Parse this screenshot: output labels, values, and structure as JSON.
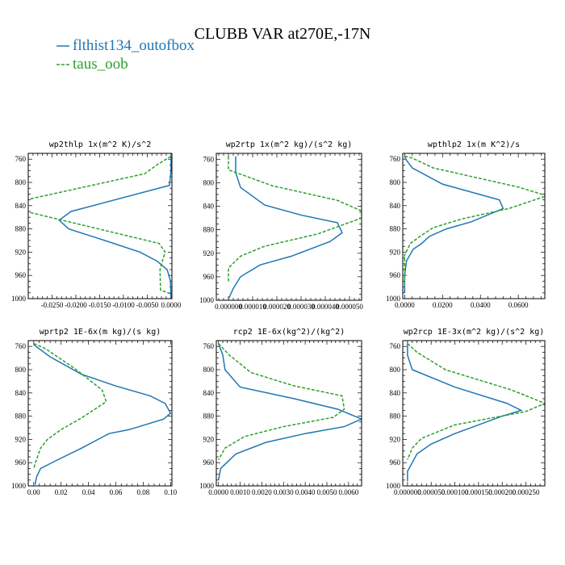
{
  "figure": {
    "title": "CLUBB VAR at270E,-17N",
    "legend": [
      {
        "label": "flthist134_outofbox",
        "color": "#1f77b4",
        "dash": "solid"
      },
      {
        "label": "taus_oob",
        "color": "#2ca02c",
        "dash": "dashed"
      }
    ]
  },
  "chart_data": [
    {
      "type": "line",
      "title": "wp2thlp  1x(m^2 K)/s^2",
      "xlim": [
        -0.03,
        0.0002
      ],
      "ylim": [
        1000,
        750
      ],
      "y_ticks": [
        760,
        800,
        840,
        880,
        920,
        960,
        1000
      ],
      "x_ticks": [
        -0.025,
        -0.02,
        -0.015,
        -0.01,
        -0.005,
        0.0
      ],
      "x_tick_labels": [
        "-0.0250",
        "-0.0200",
        "-0.0150",
        "-0.0100",
        "-0.0050",
        "0.0000"
      ],
      "series": [
        {
          "name": "flthist134_outofbox",
          "points": [
            [
              0.0,
              755
            ],
            [
              0.0,
              780
            ],
            [
              -0.0003,
              805
            ],
            [
              -0.021,
              850
            ],
            [
              -0.0235,
              865
            ],
            [
              -0.0215,
              880
            ],
            [
              -0.012,
              905
            ],
            [
              -0.0065,
              920
            ],
            [
              -0.003,
              935
            ],
            [
              -0.0008,
              950
            ],
            [
              -0.0001,
              970
            ],
            [
              0.0,
              1000
            ]
          ]
        },
        {
          "name": "taus_oob",
          "points": [
            [
              0.0,
              755
            ],
            [
              -0.003,
              770
            ],
            [
              -0.0055,
              785
            ],
            [
              -0.0305,
              830
            ],
            [
              -0.0305,
              850
            ],
            [
              -0.0025,
              905
            ],
            [
              -0.0012,
              920
            ],
            [
              -0.0018,
              935
            ],
            [
              -0.0023,
              950
            ],
            [
              -0.0022,
              985
            ],
            [
              0.0,
              992
            ]
          ]
        }
      ]
    },
    {
      "type": "line",
      "title": "wp2rtp  1x(m^2 kg)/(s^2 kg)",
      "xlim": [
        -5e-06,
        5.5e-05
      ],
      "ylim": [
        1000,
        750
      ],
      "y_ticks": [
        760,
        800,
        840,
        880,
        920,
        960,
        1000
      ],
      "x_ticks": [
        0.0,
        1e-05,
        2e-05,
        3e-05,
        4e-05,
        5e-05
      ],
      "x_tick_labels": [
        "0.000000",
        "0.000010",
        "0.000020",
        "0.000030",
        "0.000040",
        "0.000050"
      ],
      "series": [
        {
          "name": "flthist134_outofbox",
          "points": [
            [
              3e-06,
              755
            ],
            [
              3e-06,
              783
            ],
            [
              5e-06,
              808
            ],
            [
              1.5e-05,
              838
            ],
            [
              3e-05,
              855
            ],
            [
              4.5e-05,
              868
            ],
            [
              4.7e-05,
              885
            ],
            [
              4.2e-05,
              900
            ],
            [
              2.6e-05,
              925
            ],
            [
              1.3e-05,
              940
            ],
            [
              5e-06,
              960
            ],
            [
              2e-06,
              980
            ],
            [
              0.0,
              998
            ]
          ]
        },
        {
          "name": "taus_oob",
          "points": [
            [
              0.0,
              755
            ],
            [
              0.0,
              765
            ],
            [
              0.0,
              778
            ],
            [
              1.8e-05,
              805
            ],
            [
              4.5e-05,
              830
            ],
            [
              5.5e-05,
              848
            ],
            [
              5.5e-05,
              860
            ],
            [
              3.7e-05,
              887
            ],
            [
              1.5e-05,
              908
            ],
            [
              5e-06,
              925
            ],
            [
              0.0,
              945
            ],
            [
              0.0,
              960
            ],
            [
              0.0,
              970
            ]
          ]
        }
      ]
    },
    {
      "type": "line",
      "title": "wpthlp2  1x(m K^2)/s",
      "xlim": [
        -0.001,
        0.074
      ],
      "ylim": [
        1000,
        750
      ],
      "y_ticks": [
        760,
        800,
        840,
        880,
        920,
        960,
        1000
      ],
      "x_ticks": [
        0.0,
        0.02,
        0.04,
        0.06
      ],
      "x_tick_labels": [
        "0.0000",
        "0.0200",
        "0.0400",
        "0.0600"
      ],
      "series": [
        {
          "name": "flthist134_outofbox",
          "points": [
            [
              0.0,
              755
            ],
            [
              0.0005,
              760
            ],
            [
              0.004,
              775
            ],
            [
              0.02,
              803
            ],
            [
              0.05,
              830
            ],
            [
              0.052,
              845
            ],
            [
              0.035,
              868
            ],
            [
              0.022,
              880
            ],
            [
              0.013,
              893
            ],
            [
              0.009,
              905
            ],
            [
              0.0045,
              915
            ],
            [
              0.001,
              935
            ],
            [
              0.0,
              960
            ],
            [
              0.0,
              990
            ]
          ]
        },
        {
          "name": "taus_oob",
          "points": [
            [
              0.0,
              755
            ],
            [
              0.004,
              758
            ],
            [
              0.015,
              775
            ],
            [
              0.06,
              808
            ],
            [
              0.075,
              823
            ],
            [
              0.055,
              845
            ],
            [
              0.03,
              863
            ],
            [
              0.015,
              878
            ],
            [
              0.008,
              893
            ],
            [
              0.003,
              905
            ],
            [
              0.0,
              925
            ],
            [
              0.0,
              975
            ]
          ]
        }
      ]
    },
    {
      "type": "line",
      "title": "wprtp2  1E-6x(m kg)/(s kg)",
      "xlim": [
        -0.004,
        0.101
      ],
      "ylim": [
        1000,
        750
      ],
      "y_ticks": [
        760,
        800,
        840,
        880,
        920,
        960,
        1000
      ],
      "x_ticks": [
        0.0,
        0.02,
        0.04,
        0.06,
        0.08,
        0.1
      ],
      "x_tick_labels": [
        "0.00",
        "0.02",
        "0.04",
        "0.06",
        "0.08",
        "0.10"
      ],
      "series": [
        {
          "name": "flthist134_outofbox",
          "points": [
            [
              0.0,
              757
            ],
            [
              0.012,
              778
            ],
            [
              0.035,
              808
            ],
            [
              0.06,
              828
            ],
            [
              0.085,
              845
            ],
            [
              0.096,
              858
            ],
            [
              0.1,
              875
            ],
            [
              0.095,
              885
            ],
            [
              0.07,
              903
            ],
            [
              0.055,
              910
            ],
            [
              0.035,
              935
            ],
            [
              0.015,
              958
            ],
            [
              0.005,
              970
            ],
            [
              0.002,
              985
            ],
            [
              0.001,
              998
            ]
          ]
        },
        {
          "name": "taus_oob",
          "points": [
            [
              0.0,
              755
            ],
            [
              0.008,
              763
            ],
            [
              0.03,
              798
            ],
            [
              0.05,
              835
            ],
            [
              0.053,
              855
            ],
            [
              0.035,
              883
            ],
            [
              0.02,
              903
            ],
            [
              0.01,
              920
            ],
            [
              0.005,
              935
            ],
            [
              0.002,
              955
            ],
            [
              0.0,
              970
            ]
          ]
        }
      ]
    },
    {
      "type": "line",
      "title": "rcp2  1E-6x(kg^2)/(kg^2)",
      "xlim": [
        -0.0001,
        0.0066
      ],
      "ylim": [
        1000,
        750
      ],
      "y_ticks": [
        760,
        800,
        840,
        880,
        920,
        960,
        1000
      ],
      "x_ticks": [
        0.0,
        0.001,
        0.002,
        0.003,
        0.004,
        0.005,
        0.006
      ],
      "x_tick_labels": [
        "0.0000",
        "0.0010",
        "0.0020",
        "0.0030",
        "0.0040",
        "0.0050",
        "0.0060"
      ],
      "series": [
        {
          "name": "flthist134_outofbox",
          "points": [
            [
              0.0,
              755
            ],
            [
              0.0002,
              775
            ],
            [
              0.0003,
              800
            ],
            [
              0.001,
              830
            ],
            [
              0.0035,
              850
            ],
            [
              0.0055,
              868
            ],
            [
              0.0066,
              885
            ],
            [
              0.0058,
              898
            ],
            [
              0.004,
              910
            ],
            [
              0.0022,
              925
            ],
            [
              0.0008,
              945
            ],
            [
              0.0001,
              970
            ],
            [
              0.0,
              990
            ]
          ]
        },
        {
          "name": "taus_oob",
          "points": [
            [
              0.0,
              755
            ],
            [
              0.0005,
              775
            ],
            [
              0.0015,
              805
            ],
            [
              0.0035,
              828
            ],
            [
              0.0057,
              845
            ],
            [
              0.0058,
              868
            ],
            [
              0.0053,
              882
            ],
            [
              0.003,
              898
            ],
            [
              0.0012,
              915
            ],
            [
              0.0003,
              935
            ],
            [
              0.0,
              955
            ]
          ]
        }
      ]
    },
    {
      "type": "line",
      "title": "wp2rcp  1E-3x(m^2 kg)/(s^2 kg)",
      "xlim": [
        -1e-05,
        0.00029
      ],
      "ylim": [
        1000,
        750
      ],
      "y_ticks": [
        760,
        800,
        840,
        880,
        920,
        960,
        1000
      ],
      "x_ticks": [
        0.0,
        5e-05,
        0.0001,
        0.00015,
        0.0002,
        0.00025
      ],
      "x_tick_labels": [
        "0.000000",
        "0.000050",
        "0.000100",
        "0.000150",
        "0.000200",
        "0.000250"
      ],
      "series": [
        {
          "name": "flthist134_outofbox",
          "points": [
            [
              0.0,
              755
            ],
            [
              0.0,
              775
            ],
            [
              1e-05,
              800
            ],
            [
              0.0001,
              830
            ],
            [
              0.00021,
              858
            ],
            [
              0.00024,
              870
            ],
            [
              0.0002,
              880
            ],
            [
              0.00014,
              898
            ],
            [
              0.0001,
              910
            ],
            [
              5e-05,
              928
            ],
            [
              2e-05,
              945
            ],
            [
              0.0,
              975
            ],
            [
              0.0,
              992
            ]
          ]
        },
        {
          "name": "taus_oob",
          "points": [
            [
              0.0,
              755
            ],
            [
              2e-05,
              770
            ],
            [
              8e-05,
              800
            ],
            [
              0.00022,
              835
            ],
            [
              0.00029,
              858
            ],
            [
              0.00025,
              872
            ],
            [
              0.0001,
              895
            ],
            [
              3e-05,
              918
            ],
            [
              1e-05,
              935
            ],
            [
              0.0,
              955
            ]
          ]
        }
      ]
    }
  ]
}
